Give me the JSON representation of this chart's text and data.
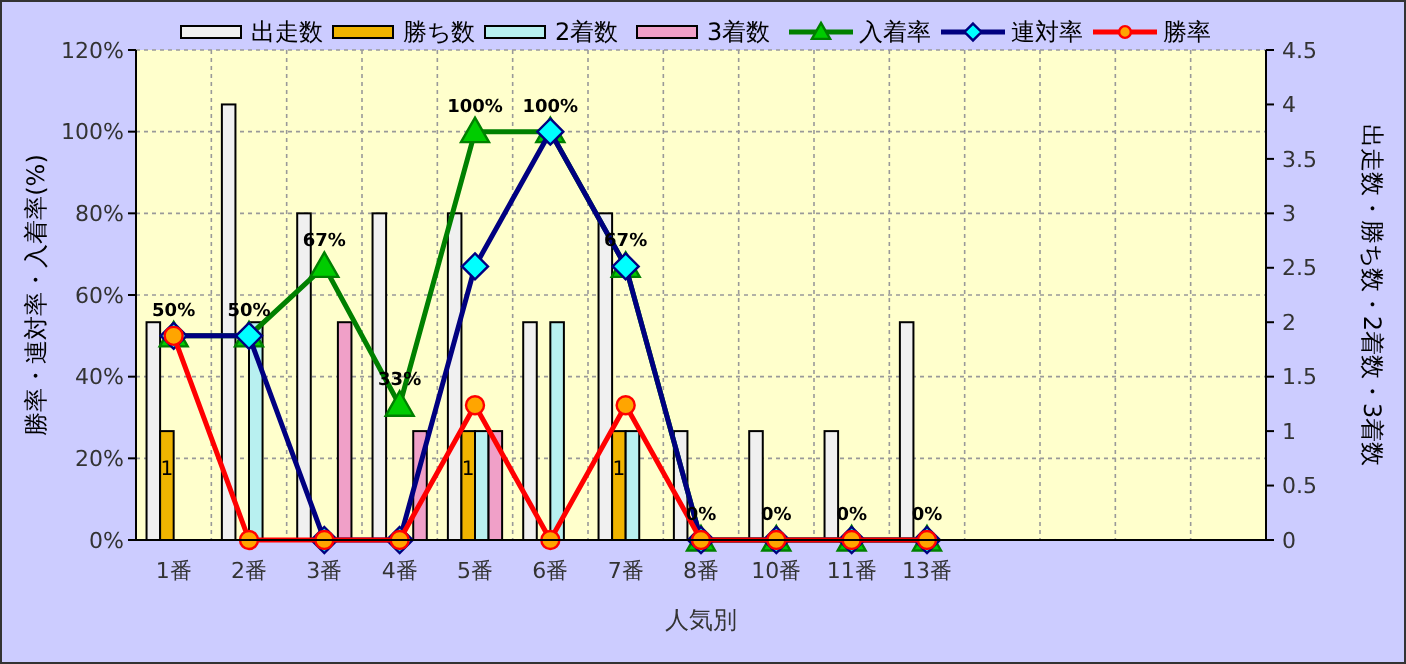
{
  "chart_data": {
    "type": "bar",
    "xlabel": "人気別",
    "ylabel": "勝率・連対率・入着率(%)",
    "y2label": "出走数・勝ち数・2着数・3着数",
    "categories": [
      "1番",
      "2番",
      "3番",
      "4番",
      "5番",
      "6番",
      "7番",
      "8番",
      "10番",
      "11番",
      "13番",
      null,
      null,
      null,
      null
    ],
    "ylim": [
      0,
      120
    ],
    "yticks": [
      {
        "value": 0,
        "label": "0%"
      },
      {
        "value": 20,
        "label": "20%"
      },
      {
        "value": 40,
        "label": "40%"
      },
      {
        "value": 60,
        "label": "60%"
      },
      {
        "value": 80,
        "label": "80%"
      },
      {
        "value": 100,
        "label": "100%"
      },
      {
        "value": 120,
        "label": "120%"
      }
    ],
    "y2lim": [
      0,
      4.5
    ],
    "y2ticks": [
      0,
      0.5,
      1,
      1.5,
      2,
      2.5,
      3,
      3.5,
      4,
      4.5
    ],
    "grid": true,
    "legend": "top",
    "series": [
      {
        "name": "出走数",
        "axis": "y2",
        "color": "#f0f0f0",
        "values": [
          2,
          4,
          3,
          3,
          3,
          2,
          3,
          1,
          1,
          1,
          2,
          null,
          null,
          null,
          null
        ]
      },
      {
        "name": "勝ち数",
        "axis": "y2",
        "color": "#f0b400",
        "values": [
          1,
          0,
          0,
          0,
          1,
          0,
          1,
          0,
          0,
          0,
          0,
          null,
          null,
          null,
          null
        ],
        "value_labels": [
          "1",
          null,
          null,
          null,
          "1",
          null,
          "1",
          null,
          null,
          null,
          null,
          null,
          null,
          null,
          null
        ]
      },
      {
        "name": "2着数",
        "axis": "y2",
        "color": "#b8f0f0",
        "values": [
          0,
          2,
          0,
          0,
          1,
          2,
          1,
          0,
          0,
          0,
          0,
          null,
          null,
          null,
          null
        ]
      },
      {
        "name": "3着数",
        "axis": "y2",
        "color": "#f0a0c8",
        "values": [
          0,
          0,
          2,
          1,
          1,
          0,
          0,
          0,
          0,
          0,
          0,
          null,
          null,
          null,
          null
        ]
      },
      {
        "name": "入着率",
        "type": "line",
        "color": "#008000",
        "marker": "triangle",
        "values": [
          50,
          50,
          67,
          33,
          100,
          100,
          67,
          0,
          0,
          0,
          0,
          null,
          null,
          null,
          null
        ],
        "value_labels": [
          "50%",
          "50%",
          "67%",
          "33%",
          "100%",
          "100%",
          "67%",
          "0%",
          "0%",
          "0%",
          "0%",
          null,
          null,
          null,
          null
        ]
      },
      {
        "name": "連対率",
        "type": "line",
        "color": "#000080",
        "marker": "diamond",
        "values": [
          50,
          50,
          0,
          0,
          67,
          100,
          67,
          0,
          0,
          0,
          0,
          null,
          null,
          null,
          null
        ]
      },
      {
        "name": "勝率",
        "type": "line",
        "color": "#ff0000",
        "marker": "circle",
        "values": [
          50,
          0,
          0,
          0,
          33,
          0,
          33,
          0,
          0,
          0,
          0,
          null,
          null,
          null,
          null
        ]
      }
    ]
  }
}
